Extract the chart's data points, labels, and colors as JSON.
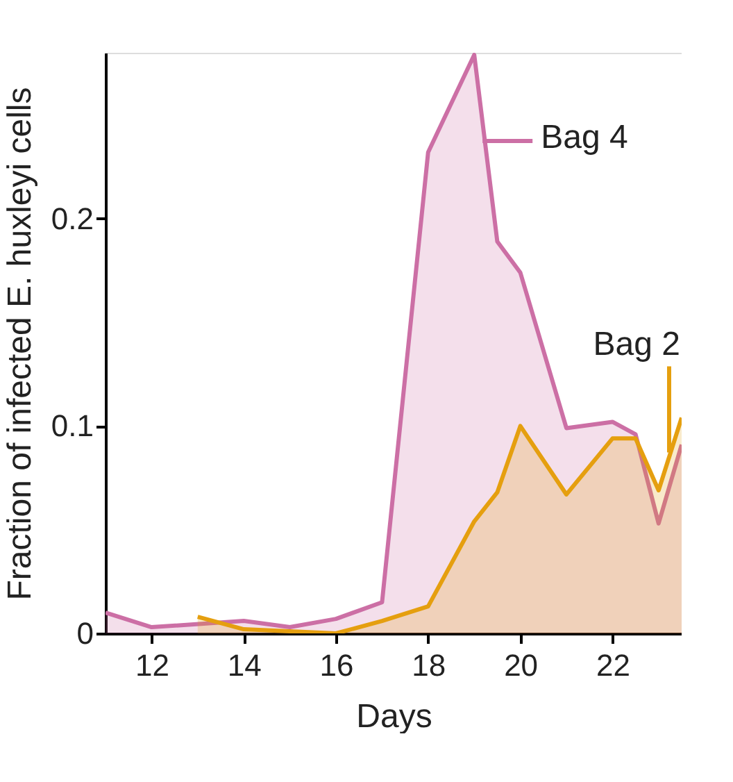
{
  "chart_data": {
    "type": "area",
    "xlabel": "Days",
    "ylabel": "Fraction of infected E. huxleyi cells",
    "xlim": [
      11,
      23.5
    ],
    "xticks": [
      12,
      14,
      16,
      18,
      20,
      22
    ],
    "ylim": [
      0,
      0.28
    ],
    "yticks": [
      0,
      0.1,
      0.2
    ],
    "grid": false,
    "series": [
      {
        "name": "Bag 4",
        "color": "#cc6fa5",
        "x": [
          11,
          12,
          14,
          15,
          16,
          17,
          18,
          19,
          19.5,
          20,
          21,
          22,
          22.5,
          23,
          23.5
        ],
        "values": [
          0.01,
          0.003,
          0.006,
          0.003,
          0.007,
          0.015,
          0.232,
          0.279,
          0.189,
          0.174,
          0.099,
          0.102,
          0.096,
          0.053,
          0.091
        ]
      },
      {
        "name": "Bag 2",
        "color": "#e59f0f",
        "x": [
          13,
          14,
          16,
          17,
          18,
          19,
          19.5,
          20,
          21,
          22,
          22.5,
          23,
          23.5
        ],
        "values": [
          0.008,
          0.002,
          0.0,
          0.006,
          0.013,
          0.054,
          0.068,
          0.1,
          0.067,
          0.094,
          0.094,
          0.069,
          0.104
        ]
      }
    ]
  }
}
